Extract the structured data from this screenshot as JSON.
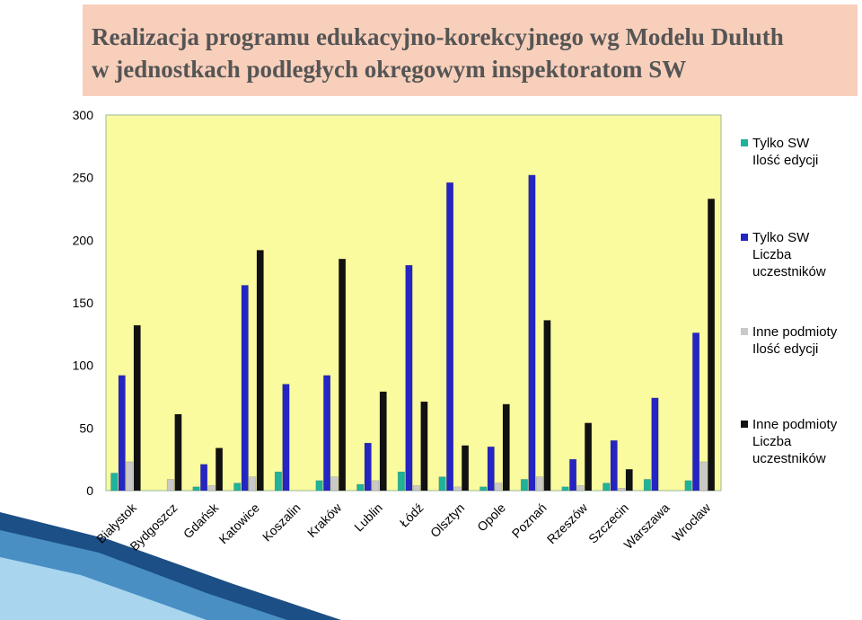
{
  "chart_data": {
    "type": "bar",
    "title": "Realizacja programu edukacyjno-korekcyjnego wg Modelu Duluth\nw jednostkach podległych okręgowym inspektoratom SW",
    "categories": [
      "Białystok",
      "Bydgoszcz",
      "Gdańsk",
      "Katowice",
      "Koszalin",
      "Kraków",
      "Lublin",
      "Łódź",
      "Olsztyn",
      "Opole",
      "Poznań",
      "Rzeszów",
      "Szczecin",
      "Warszawa",
      "Wrocław"
    ],
    "series": [
      {
        "name": "Tylko SW\nIlość edycji",
        "color": "#1fb39a",
        "values": [
          14,
          0,
          3,
          6,
          15,
          8,
          5,
          15,
          11,
          3,
          9,
          3,
          6,
          9,
          8
        ]
      },
      {
        "name": "Tylko SW\nLiczba\nuczestników",
        "color": "#2525c4",
        "values": [
          92,
          0,
          21,
          164,
          85,
          92,
          38,
          180,
          246,
          35,
          252,
          25,
          40,
          74,
          126
        ]
      },
      {
        "name": "Inne podmioty\nIlość edycji",
        "color": "#c9c9c9",
        "values": [
          23,
          9,
          4,
          11,
          0,
          11,
          8,
          4,
          3,
          6,
          11,
          4,
          2,
          0,
          23
        ]
      },
      {
        "name": "Inne podmioty\nLiczba\nuczestników",
        "color": "#111111",
        "values": [
          132,
          61,
          34,
          192,
          0,
          185,
          79,
          71,
          36,
          69,
          136,
          54,
          17,
          0,
          233
        ]
      }
    ],
    "ylim": [
      0,
      300
    ],
    "yticks": [
      0,
      50,
      100,
      150,
      200,
      250,
      300
    ],
    "grid": false,
    "legend": "right"
  }
}
